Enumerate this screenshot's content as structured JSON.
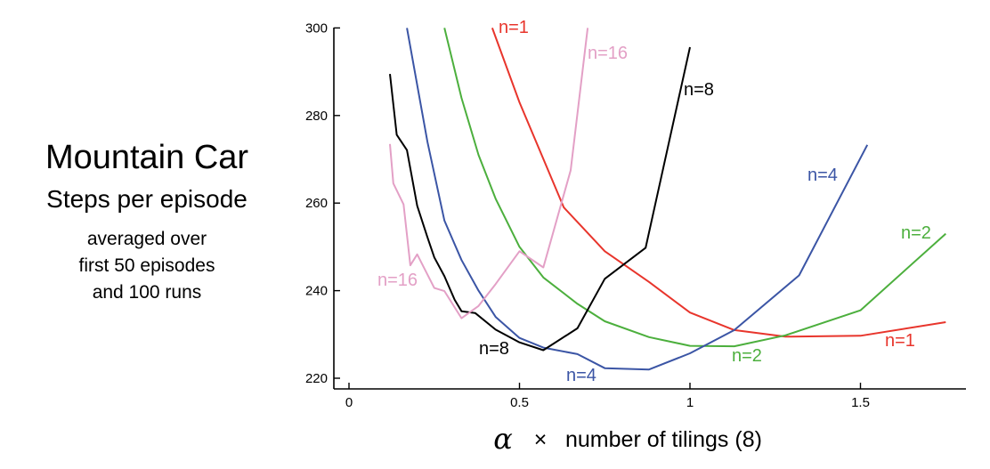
{
  "side_text": {
    "title": "Mountain Car",
    "subtitle": "Steps per episode",
    "line1": "averaged over",
    "line2": "first 50 episodes",
    "line3": "and 100 runs"
  },
  "chart_data": {
    "type": "line",
    "title": "Mountain Car",
    "xlabel_symbol": "α",
    "xlabel_times": "×",
    "xlabel": "number of tilings (8)",
    "ylabel": "",
    "xlim": [
      -0.03,
      1.83
    ],
    "ylim": [
      218,
      300
    ],
    "x_ticks": [
      0,
      0.5,
      1,
      1.5
    ],
    "x_tick_labels": [
      "0",
      "0.5",
      "1",
      "1.5"
    ],
    "y_ticks": [
      220,
      240,
      260,
      280,
      300
    ],
    "y_tick_labels": [
      "220",
      "240",
      "260",
      "280",
      "300"
    ],
    "grid": false,
    "series": [
      {
        "name": "n=1",
        "color": "#e8352c",
        "x": [
          0.42,
          0.5,
          0.63,
          0.75,
          0.88,
          1.0,
          1.13,
          1.28,
          1.5,
          1.75
        ],
        "y": [
          300,
          283,
          259,
          249,
          242,
          235,
          231,
          229.5,
          229.7,
          232.8
        ],
        "labels": [
          "n=1",
          "n=1"
        ]
      },
      {
        "name": "n=2",
        "color": "#4caf3d",
        "x": [
          0.28,
          0.33,
          0.38,
          0.43,
          0.5,
          0.57,
          0.67,
          0.75,
          0.88,
          1.0,
          1.13,
          1.28,
          1.5,
          1.75
        ],
        "y": [
          300,
          284,
          271,
          261,
          250,
          243,
          237,
          233,
          229.4,
          227.4,
          227.3,
          229.8,
          235.5,
          253
        ],
        "labels": [
          "n=2",
          "n=2"
        ]
      },
      {
        "name": "n=4",
        "color": "#3b55a5",
        "x": [
          0.17,
          0.2,
          0.23,
          0.28,
          0.33,
          0.38,
          0.43,
          0.5,
          0.57,
          0.67,
          0.75,
          0.88,
          1.0,
          1.13,
          1.32,
          1.52
        ],
        "y": [
          300,
          287,
          274,
          256,
          247,
          240,
          234,
          229.2,
          227,
          225.5,
          222.3,
          222,
          225.7,
          231,
          243.5,
          273.3
        ],
        "labels": [
          "n=4",
          "n=4"
        ]
      },
      {
        "name": "n=8",
        "color": "#000000",
        "x": [
          0.12,
          0.14,
          0.17,
          0.2,
          0.23,
          0.25,
          0.28,
          0.31,
          0.33,
          0.37,
          0.43,
          0.5,
          0.57,
          0.67,
          0.75,
          0.87,
          1.0
        ],
        "y": [
          289.5,
          275.6,
          272.1,
          259.4,
          252.2,
          247.6,
          243.3,
          237.9,
          235.3,
          234.9,
          231.1,
          228.2,
          226.4,
          231.4,
          242.7,
          249.8,
          295.6
        ],
        "labels": [
          "n=8",
          "n=8"
        ]
      },
      {
        "name": "n=16",
        "color": "#e3a0c6",
        "x": [
          0.12,
          0.13,
          0.16,
          0.18,
          0.2,
          0.25,
          0.28,
          0.33,
          0.38,
          0.43,
          0.5,
          0.57,
          0.65,
          0.7
        ],
        "y": [
          273.5,
          264.5,
          259.7,
          245.8,
          248.3,
          240.6,
          239.9,
          233.7,
          236.5,
          241.5,
          249,
          245.3,
          267.5,
          300
        ],
        "labels": [
          "n=16",
          "n=16"
        ]
      }
    ]
  }
}
